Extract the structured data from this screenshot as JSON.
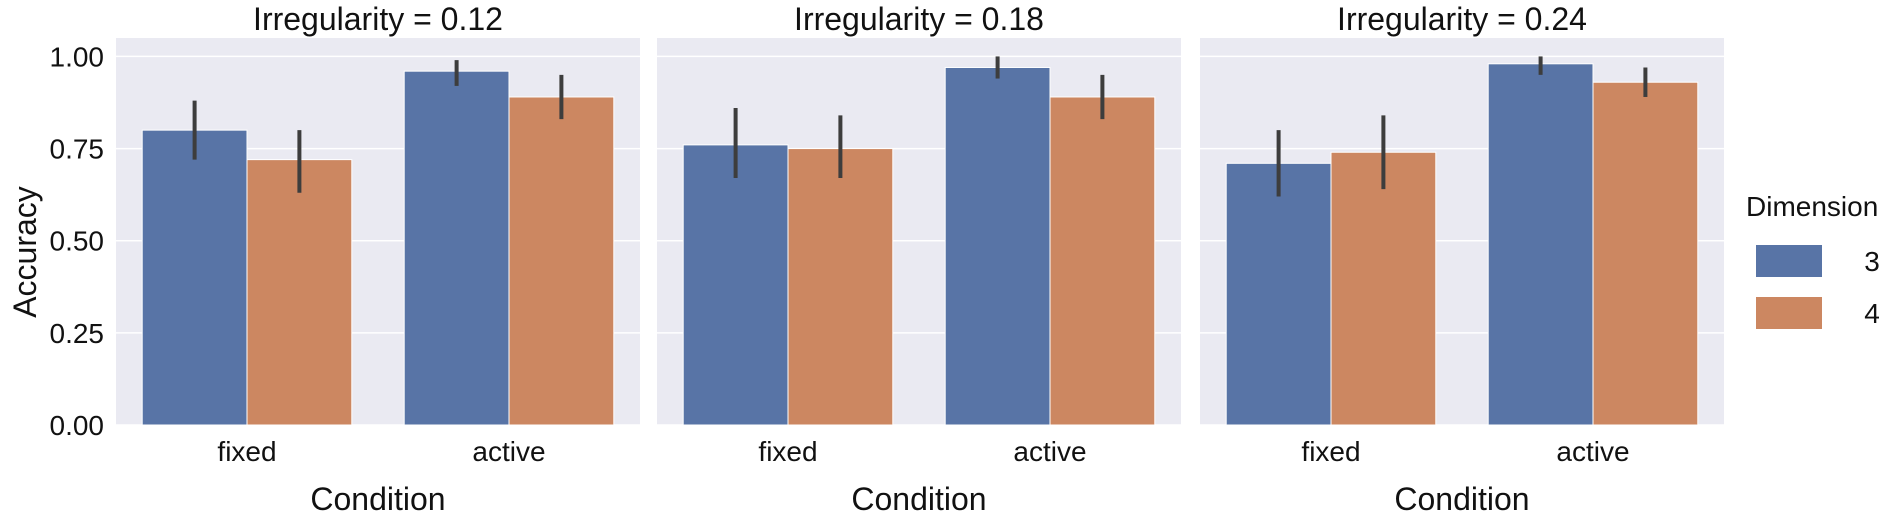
{
  "chart_data": {
    "type": "bar",
    "ylabel": "Accuracy",
    "xlabel": "Condition",
    "ylim": [
      0,
      1.05
    ],
    "yticks": [
      "0.00",
      "0.25",
      "0.50",
      "0.75",
      "1.00"
    ],
    "categories": [
      "fixed",
      "active"
    ],
    "legend": {
      "title": "Dimension",
      "placement": "right",
      "entries": [
        {
          "label": "3",
          "color": "#5874a6"
        },
        {
          "label": "4",
          "color": "#cc8761"
        }
      ]
    },
    "grid": true,
    "panels": [
      {
        "title": "Irregularity = 0.12",
        "series": [
          {
            "name": "3",
            "values": [
              0.8,
              0.96
            ],
            "err_low": [
              0.72,
              0.92
            ],
            "err_high": [
              0.88,
              0.99
            ]
          },
          {
            "name": "4",
            "values": [
              0.72,
              0.89
            ],
            "err_low": [
              0.63,
              0.83
            ],
            "err_high": [
              0.8,
              0.95
            ]
          }
        ]
      },
      {
        "title": "Irregularity = 0.18",
        "series": [
          {
            "name": "3",
            "values": [
              0.76,
              0.97
            ],
            "err_low": [
              0.67,
              0.94
            ],
            "err_high": [
              0.86,
              1.0
            ]
          },
          {
            "name": "4",
            "values": [
              0.75,
              0.89
            ],
            "err_low": [
              0.67,
              0.83
            ],
            "err_high": [
              0.84,
              0.95
            ]
          }
        ]
      },
      {
        "title": "Irregularity = 0.24",
        "series": [
          {
            "name": "3",
            "values": [
              0.71,
              0.98
            ],
            "err_low": [
              0.62,
              0.95
            ],
            "err_high": [
              0.8,
              1.0
            ]
          },
          {
            "name": "4",
            "values": [
              0.74,
              0.93
            ],
            "err_low": [
              0.64,
              0.89
            ],
            "err_high": [
              0.84,
              0.97
            ]
          }
        ]
      }
    ]
  }
}
